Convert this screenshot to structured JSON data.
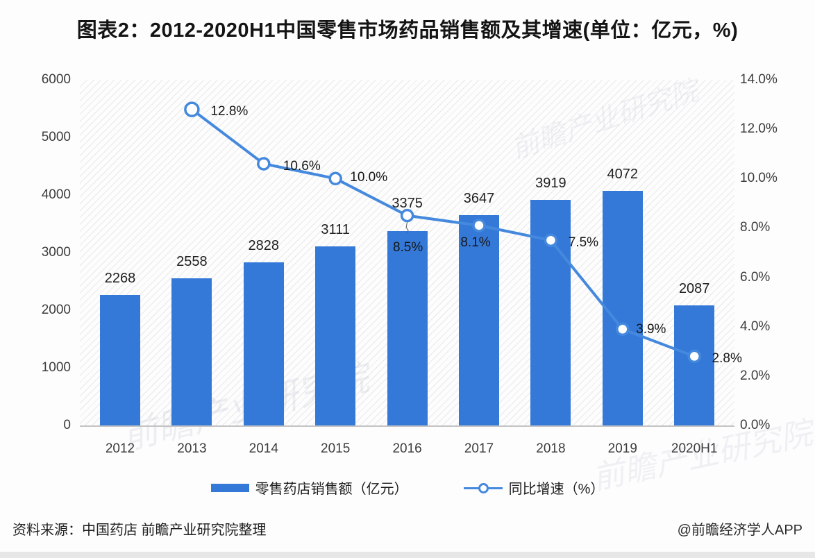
{
  "title": "图表2：2012-2020H1中国零售市场药品销售额及其增速(单位：亿元，%)",
  "watermark": "前瞻产业研究院",
  "chart_data": {
    "type": "combo-bar-line",
    "categories": [
      "2012",
      "2013",
      "2014",
      "2015",
      "2016",
      "2017",
      "2018",
      "2019",
      "2020H1"
    ],
    "series": [
      {
        "name": "零售药店销售额（亿元）",
        "chart": "bar",
        "axis": "left",
        "color": "#3579d8",
        "values": [
          2268,
          2558,
          2828,
          3111,
          3375,
          3647,
          3919,
          4072,
          2087
        ]
      },
      {
        "name": "同比增速（%）",
        "chart": "line",
        "axis": "right",
        "color": "#4489dd",
        "values": [
          null,
          12.8,
          10.6,
          10.0,
          8.5,
          8.1,
          7.5,
          3.9,
          2.8
        ],
        "point_labels": [
          "",
          "12.8%",
          "10.6%",
          "10.0%",
          "8.5%",
          "8.1%",
          "7.5%",
          "3.9%",
          "2.8%"
        ]
      }
    ],
    "left_axis": {
      "min": 0,
      "max": 6000,
      "step": 1000,
      "ticks": [
        "0",
        "1000",
        "2000",
        "3000",
        "4000",
        "5000",
        "6000"
      ]
    },
    "right_axis": {
      "min": 0,
      "max": 14,
      "step": 2,
      "ticks": [
        "0.0%",
        "2.0%",
        "4.0%",
        "6.0%",
        "8.0%",
        "10.0%",
        "12.0%",
        "14.0%"
      ]
    },
    "grid": false,
    "legend_position": "bottom"
  },
  "footer": {
    "source": "资料来源：中国药店 前瞻产业研究院整理",
    "credit": "@前瞻经济学人APP"
  }
}
